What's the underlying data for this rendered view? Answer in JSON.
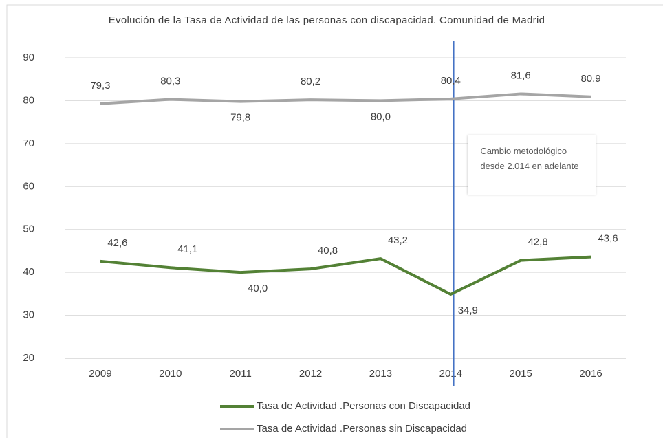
{
  "chart_data": {
    "type": "line",
    "title": "Evolución de la Tasa de Actividad de las personas con discapacidad. Comunidad de Madrid",
    "categories": [
      "2009",
      "2010",
      "2011",
      "2012",
      "2013",
      "2014",
      "2015",
      "2016"
    ],
    "series": [
      {
        "name": "Tasa de Actividad .Personas con Discapacidad",
        "color": "#538135",
        "values": [
          42.6,
          41.1,
          40.0,
          40.8,
          43.2,
          34.9,
          42.8,
          43.6
        ],
        "value_labels": [
          "42,6",
          "41,1",
          "40,0",
          "40,8",
          "43,2",
          "34,9",
          "42,8",
          "43,6"
        ]
      },
      {
        "name": "Tasa de Actividad .Personas sin Discapacidad",
        "color": "#a5a5a5",
        "values": [
          79.3,
          80.3,
          79.8,
          80.2,
          80.0,
          80.4,
          81.6,
          80.9
        ],
        "value_labels": [
          "79,3",
          "80,3",
          "79,8",
          "80,2",
          "80,0",
          "80,4",
          "81,6",
          "80,9"
        ]
      }
    ],
    "ylim": [
      20,
      90
    ],
    "yticks": [
      20,
      30,
      40,
      50,
      60,
      70,
      80,
      90
    ],
    "grid": true,
    "legend": "bottom",
    "annotation": {
      "text": "Cambio metodológico desde 2.014 en adelante",
      "category": "2014",
      "color": "#4472c4"
    }
  }
}
